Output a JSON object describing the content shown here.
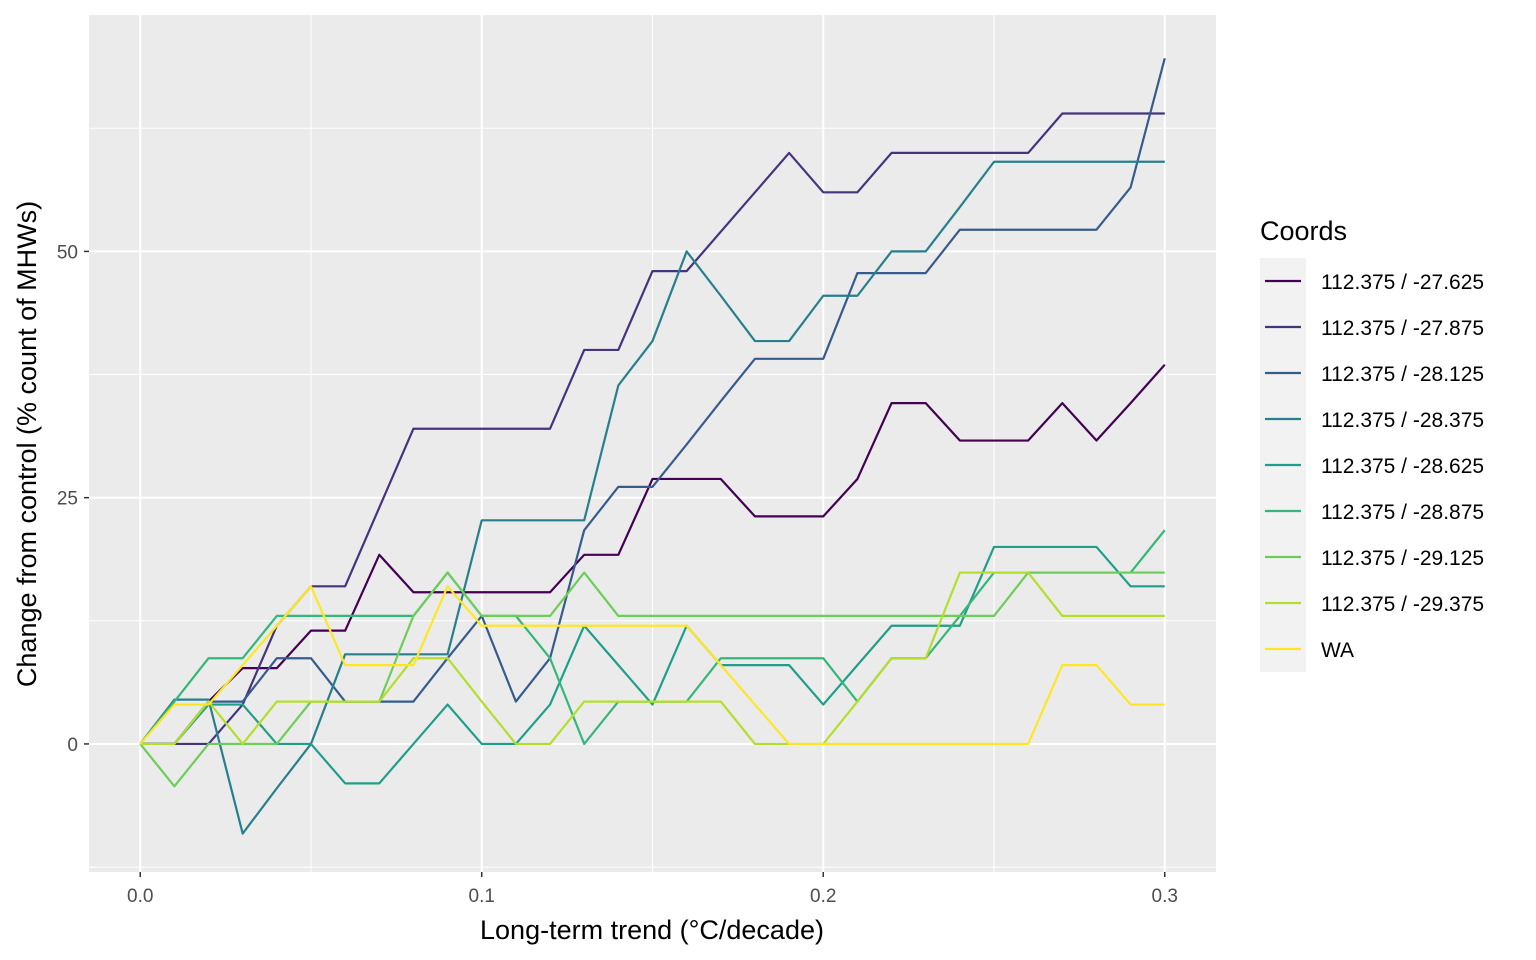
{
  "chart_data": {
    "type": "line",
    "xlabel": "Long-term trend (°C/decade)",
    "ylabel": "Change from control (% count of MHWs)",
    "xlim": [
      -0.015,
      0.315
    ],
    "ylim": [
      -13,
      74
    ],
    "x_ticks": [
      0.0,
      0.1,
      0.2,
      0.3
    ],
    "x_tick_labels": [
      "0.0",
      "0.1",
      "0.2",
      "0.3"
    ],
    "y_ticks": [
      0,
      25,
      50
    ],
    "y_tick_labels": [
      "0",
      "25",
      "50"
    ],
    "grid": true,
    "legend": {
      "title": "Coords",
      "position": "right"
    },
    "x": [
      0.0,
      0.01,
      0.02,
      0.03,
      0.04,
      0.05,
      0.06,
      0.07,
      0.08,
      0.09,
      0.1,
      0.11,
      0.12,
      0.13,
      0.14,
      0.15,
      0.16,
      0.17,
      0.18,
      0.19,
      0.2,
      0.21,
      0.22,
      0.23,
      0.24,
      0.25,
      0.26,
      0.27,
      0.28,
      0.29,
      0.3
    ],
    "series": [
      {
        "name": "112.375 / -27.625",
        "color": "#440154",
        "values": [
          0,
          0,
          4.3,
          7.7,
          7.7,
          11.5,
          11.5,
          19.2,
          15.4,
          15.4,
          15.4,
          15.4,
          15.4,
          19.2,
          19.2,
          26.9,
          26.9,
          26.9,
          23.1,
          23.1,
          23.1,
          26.9,
          34.6,
          34.6,
          30.8,
          30.8,
          30.8,
          34.6,
          30.8,
          34.6,
          38.5
        ]
      },
      {
        "name": "112.375 / -27.875",
        "color": "#46337E",
        "values": [
          0,
          0,
          0,
          4.0,
          12.0,
          16.0,
          16.0,
          24.0,
          32.0,
          32.0,
          32.0,
          32.0,
          32.0,
          40.0,
          40.0,
          48.0,
          48.0,
          52.0,
          56.0,
          60.0,
          56.0,
          56.0,
          60.0,
          60.0,
          60.0,
          60.0,
          60.0,
          64.0,
          64.0,
          64.0,
          64.0
        ]
      },
      {
        "name": "112.375 / -28.125",
        "color": "#365C8D",
        "values": [
          0,
          0,
          4.3,
          4.3,
          8.7,
          8.7,
          4.3,
          4.3,
          4.3,
          8.7,
          13.0,
          4.3,
          8.7,
          21.7,
          26.1,
          26.1,
          30.4,
          34.8,
          39.1,
          39.1,
          39.1,
          47.8,
          47.8,
          47.8,
          52.2,
          52.2,
          52.2,
          52.2,
          52.2,
          56.5,
          69.6
        ]
      },
      {
        "name": "112.375 / -28.375",
        "color": "#277F8E",
        "values": [
          0,
          4.5,
          4.5,
          -9.1,
          -4.5,
          0,
          9.1,
          9.1,
          9.1,
          9.1,
          22.7,
          22.7,
          22.7,
          22.7,
          36.4,
          40.9,
          50.0,
          45.5,
          40.9,
          40.9,
          45.5,
          45.5,
          50.0,
          50.0,
          54.5,
          59.1,
          59.1,
          59.1,
          59.1,
          59.1,
          59.1
        ]
      },
      {
        "name": "112.375 / -28.625",
        "color": "#1F9E89",
        "values": [
          0,
          0,
          4.0,
          4.0,
          0,
          0,
          -4.0,
          -4.0,
          0,
          4.0,
          0,
          0,
          4.0,
          12.0,
          8.0,
          4.0,
          12.0,
          8.0,
          8.0,
          8.0,
          4.0,
          8.0,
          12.0,
          12.0,
          12.0,
          20.0,
          20.0,
          20.0,
          20.0,
          16.0,
          16.0
        ]
      },
      {
        "name": "112.375 / -28.875",
        "color": "#35B779",
        "values": [
          0,
          4.3,
          8.7,
          8.7,
          13.0,
          13.0,
          13.0,
          13.0,
          13.0,
          17.4,
          13.0,
          13.0,
          8.7,
          0,
          4.3,
          4.3,
          4.3,
          8.7,
          8.7,
          8.7,
          8.7,
          4.3,
          8.7,
          8.7,
          13.0,
          17.4,
          17.4,
          17.4,
          17.4,
          17.4,
          21.7
        ]
      },
      {
        "name": "112.375 / -29.125",
        "color": "#6DCD59",
        "values": [
          0,
          -4.3,
          0,
          0,
          0,
          4.3,
          4.3,
          4.3,
          13.0,
          17.4,
          13.0,
          13.0,
          13.0,
          17.4,
          13.0,
          13.0,
          13.0,
          13.0,
          13.0,
          13.0,
          13.0,
          13.0,
          13.0,
          13.0,
          13.0,
          13.0,
          17.4,
          17.4,
          17.4,
          17.4,
          17.4
        ]
      },
      {
        "name": "112.375 / -29.375",
        "color": "#B4DE2C",
        "values": [
          0,
          0,
          4.3,
          0,
          4.3,
          4.3,
          4.3,
          4.3,
          8.7,
          8.7,
          4.3,
          0,
          0,
          4.3,
          4.3,
          4.3,
          4.3,
          4.3,
          0,
          0,
          0,
          4.3,
          8.7,
          8.7,
          17.4,
          17.4,
          17.4,
          13.0,
          13.0,
          13.0,
          13.0
        ]
      },
      {
        "name": "WA",
        "color": "#FDE725",
        "values": [
          0,
          4.0,
          4.0,
          8.0,
          12.0,
          16.0,
          8.0,
          8.0,
          8.0,
          16.0,
          12.0,
          12.0,
          12.0,
          12.0,
          12.0,
          12.0,
          12.0,
          8.0,
          4.0,
          0,
          0,
          0,
          0,
          0,
          0,
          0,
          0,
          8.0,
          8.0,
          4.0,
          4.0
        ]
      }
    ]
  }
}
